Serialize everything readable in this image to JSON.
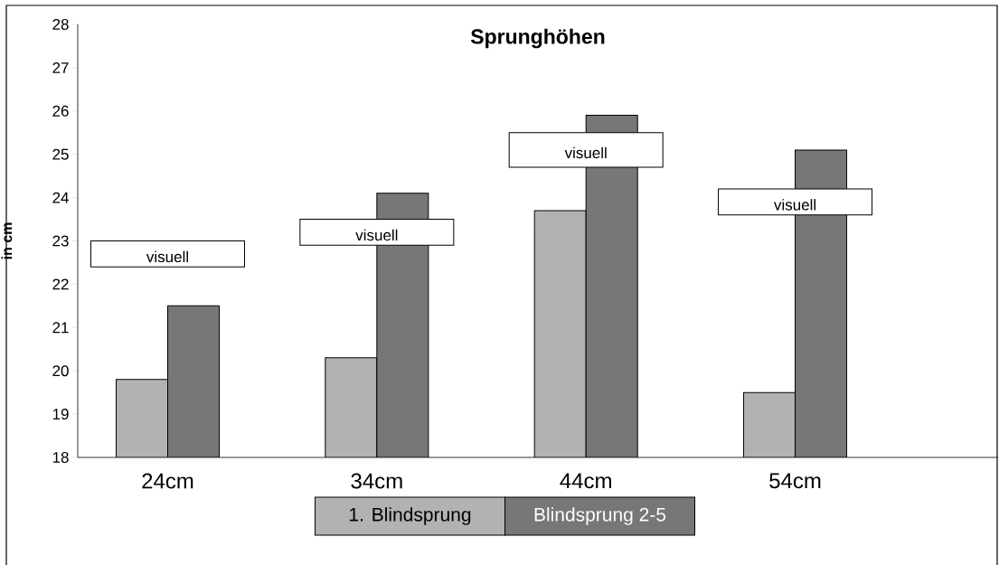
{
  "chart_data": {
    "type": "bar",
    "title": "Sprunghöhen",
    "ylabel": "in cm",
    "categories": [
      "24cm",
      "34cm",
      "44cm",
      "54cm"
    ],
    "series": [
      {
        "name": "1. Blindsprung",
        "color": "#b2b2b2",
        "values": [
          19.8,
          20.3,
          23.7,
          19.5
        ]
      },
      {
        "name": "Blindsprung 2-5",
        "color": "#777777",
        "values": [
          21.5,
          24.1,
          25.9,
          25.1
        ]
      },
      {
        "name": "visuell",
        "color": "#ffffff",
        "base": [
          22.4,
          22.9,
          24.7,
          23.6
        ],
        "values": [
          0.6,
          0.6,
          0.8,
          0.6
        ]
      }
    ],
    "ylim": [
      18,
      28
    ],
    "yticks": [
      18,
      19,
      20,
      21,
      22,
      23,
      24,
      25,
      26,
      27,
      28
    ],
    "grid": false,
    "legend": "bottom"
  }
}
